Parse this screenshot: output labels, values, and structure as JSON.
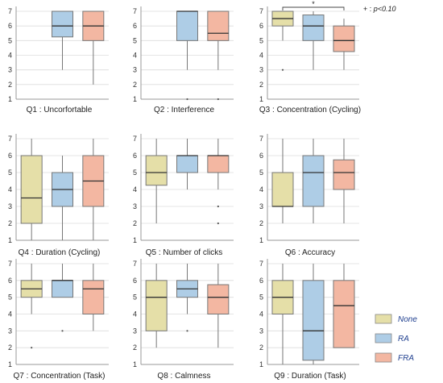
{
  "colors": {
    "None": "#e5dfa8",
    "RA": "#aecde6",
    "FRA": "#f3b7a2",
    "stroke": "#777777",
    "grid": "#dcdcdc"
  },
  "legend": {
    "placement": "bottom-right",
    "items": [
      {
        "key": "None",
        "label": "None"
      },
      {
        "key": "RA",
        "label": "RA"
      },
      {
        "key": "FRA",
        "label": "FRA"
      }
    ]
  },
  "chart_data": [
    {
      "type": "box",
      "title": "Q1 : Uncorfortable",
      "ylim": [
        1,
        7
      ],
      "yticks": [
        1,
        2,
        3,
        4,
        5,
        6,
        7
      ],
      "grid": true,
      "boxes": [
        {
          "group": "RA",
          "min": 3,
          "q1": 5.25,
          "median": 6,
          "q3": 7,
          "max": 7,
          "outliers": []
        },
        {
          "group": "FRA",
          "min": 2,
          "q1": 5,
          "median": 6,
          "q3": 7,
          "max": 7,
          "outliers": []
        }
      ],
      "annotations": []
    },
    {
      "type": "box",
      "title": "Q2 : Interference",
      "ylim": [
        1,
        7
      ],
      "yticks": [
        1,
        2,
        3,
        4,
        5,
        6,
        7
      ],
      "grid": true,
      "boxes": [
        {
          "group": "RA",
          "min": 3,
          "q1": 5,
          "median": 7,
          "q3": 7,
          "max": 7,
          "outliers": [
            1
          ]
        },
        {
          "group": "FRA",
          "min": 3,
          "q1": 5,
          "median": 5.5,
          "q3": 7,
          "max": 7,
          "outliers": [
            1
          ]
        }
      ],
      "annotations": []
    },
    {
      "type": "box",
      "title": "Q3 : Concentration (Cycling)",
      "ylim": [
        1,
        7
      ],
      "yticks": [
        1,
        2,
        3,
        4,
        5,
        6,
        7
      ],
      "grid": true,
      "boxes": [
        {
          "group": "None",
          "min": 5,
          "q1": 6,
          "median": 6.5,
          "q3": 7,
          "max": 7,
          "outliers": [
            3
          ]
        },
        {
          "group": "RA",
          "min": 3,
          "q1": 5,
          "median": 6,
          "q3": 6.75,
          "max": 7,
          "outliers": []
        },
        {
          "group": "FRA",
          "min": 3,
          "q1": 4.25,
          "median": 5,
          "q3": 6,
          "max": 6.5,
          "outliers": []
        }
      ],
      "annotations": [
        {
          "from": "None",
          "to": "FRA",
          "mark": "*",
          "note_prefix": "+ : ",
          "note_italic": "p<0.10"
        }
      ]
    },
    {
      "type": "box",
      "title": "Q4 : Duration (Cycling)",
      "ylim": [
        1,
        7
      ],
      "yticks": [
        1,
        2,
        3,
        4,
        5,
        6,
        7
      ],
      "grid": true,
      "boxes": [
        {
          "group": "None",
          "min": 1,
          "q1": 2,
          "median": 3.5,
          "q3": 6,
          "max": 7,
          "outliers": []
        },
        {
          "group": "RA",
          "min": 1,
          "q1": 3,
          "median": 4,
          "q3": 5,
          "max": 6,
          "outliers": []
        },
        {
          "group": "FRA",
          "min": 1,
          "q1": 3,
          "median": 4.5,
          "q3": 6,
          "max": 7,
          "outliers": []
        }
      ],
      "annotations": []
    },
    {
      "type": "box",
      "title": "Q5 : Number of  clicks",
      "ylim": [
        1,
        7
      ],
      "yticks": [
        1,
        2,
        3,
        4,
        5,
        6,
        7
      ],
      "grid": true,
      "boxes": [
        {
          "group": "None",
          "min": 2,
          "q1": 4.25,
          "median": 5,
          "q3": 6,
          "max": 7,
          "outliers": []
        },
        {
          "group": "RA",
          "min": 4,
          "q1": 5,
          "median": 6,
          "q3": 6,
          "max": 7,
          "outliers": []
        },
        {
          "group": "FRA",
          "min": 4,
          "q1": 5,
          "median": 6,
          "q3": 6,
          "max": 7,
          "outliers": [
            3,
            2
          ]
        }
      ],
      "annotations": []
    },
    {
      "type": "box",
      "title": "Q6 : Accuracy",
      "ylim": [
        1,
        7
      ],
      "yticks": [
        1,
        2,
        3,
        4,
        5,
        6,
        7
      ],
      "grid": true,
      "boxes": [
        {
          "group": "None",
          "min": 2,
          "q1": 3,
          "median": 3,
          "q3": 5,
          "max": 7,
          "outliers": []
        },
        {
          "group": "RA",
          "min": 2,
          "q1": 3,
          "median": 5,
          "q3": 6,
          "max": 7,
          "outliers": []
        },
        {
          "group": "FRA",
          "min": 2,
          "q1": 4,
          "median": 5,
          "q3": 5.75,
          "max": 7,
          "outliers": []
        }
      ],
      "annotations": []
    },
    {
      "type": "box",
      "title": "Q7 : Concentration (Task)",
      "ylim": [
        1,
        7
      ],
      "yticks": [
        1,
        2,
        3,
        4,
        5,
        6,
        7
      ],
      "grid": true,
      "boxes": [
        {
          "group": "None",
          "min": 4,
          "q1": 5,
          "median": 5.5,
          "q3": 6,
          "max": 7,
          "outliers": [
            2
          ]
        },
        {
          "group": "RA",
          "min": 5,
          "q1": 5,
          "median": 6,
          "q3": 6,
          "max": 7,
          "outliers": [
            3
          ]
        },
        {
          "group": "FRA",
          "min": 3,
          "q1": 4,
          "median": 5.5,
          "q3": 6,
          "max": 7,
          "outliers": []
        }
      ],
      "annotations": []
    },
    {
      "type": "box",
      "title": "Q8 : Calmness",
      "ylim": [
        1,
        7
      ],
      "yticks": [
        1,
        2,
        3,
        4,
        5,
        6,
        7
      ],
      "grid": true,
      "boxes": [
        {
          "group": "None",
          "min": 2,
          "q1": 3,
          "median": 5,
          "q3": 6,
          "max": 7,
          "outliers": []
        },
        {
          "group": "RA",
          "min": 4,
          "q1": 5,
          "median": 5.5,
          "q3": 6,
          "max": 7,
          "outliers": [
            3
          ]
        },
        {
          "group": "FRA",
          "min": 2,
          "q1": 4,
          "median": 5,
          "q3": 5.75,
          "max": 7,
          "outliers": []
        }
      ],
      "annotations": []
    },
    {
      "type": "box",
      "title": "Q9 : Duration (Task)",
      "ylim": [
        1,
        7
      ],
      "yticks": [
        1,
        2,
        3,
        4,
        5,
        6,
        7
      ],
      "grid": true,
      "boxes": [
        {
          "group": "None",
          "min": 1,
          "q1": 4,
          "median": 5,
          "q3": 6,
          "max": 7,
          "outliers": []
        },
        {
          "group": "RA",
          "min": 1,
          "q1": 1.25,
          "median": 3,
          "q3": 6,
          "max": 7,
          "outliers": []
        },
        {
          "group": "FRA",
          "min": 2,
          "q1": 2,
          "median": 4.5,
          "q3": 6,
          "max": 7,
          "outliers": []
        }
      ],
      "annotations": []
    }
  ]
}
